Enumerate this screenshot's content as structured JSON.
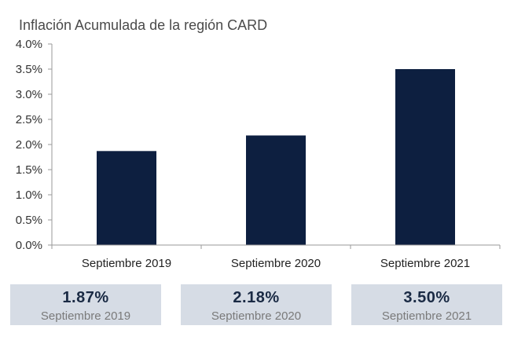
{
  "chart_data": {
    "type": "bar",
    "title": "Inflación Acumulada de la región CARD",
    "categories": [
      "Septiembre 2019",
      "Septiembre 2020",
      "Septiembre 2021"
    ],
    "values": [
      1.87,
      2.18,
      3.5
    ],
    "ylim": [
      0,
      4
    ],
    "yticks": [
      "0.0%",
      "0.5%",
      "1.0%",
      "1.5%",
      "2.0%",
      "2.5%",
      "3.0%",
      "3.5%",
      "4.0%"
    ],
    "ytick_values": [
      0,
      0.5,
      1,
      1.5,
      2,
      2.5,
      3,
      3.5,
      4
    ],
    "grid": false,
    "bar_color": "#0d1f40"
  },
  "cards": [
    {
      "value": "1.87%",
      "label": "Septiembre 2019"
    },
    {
      "value": "2.18%",
      "label": "Septiembre 2020"
    },
    {
      "value": "3.50%",
      "label": "Septiembre 2021"
    }
  ]
}
